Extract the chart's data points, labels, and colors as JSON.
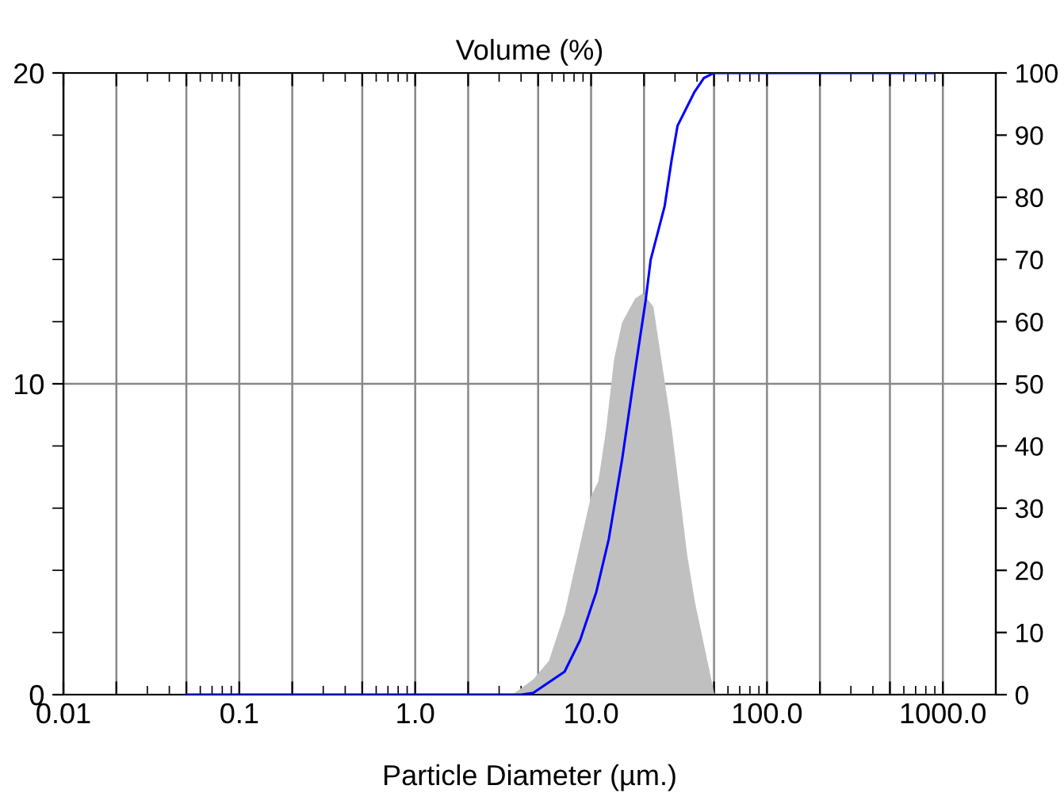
{
  "chart_data": {
    "type": "area",
    "title": "Volume (%)",
    "xlabel": "Particle Diameter (µm.)",
    "log": "x",
    "xlim": [
      0.01,
      2000
    ],
    "xticks": [
      {
        "value": 0.01,
        "label": "0.01"
      },
      {
        "value": 0.02,
        "label": null
      },
      {
        "value": 0.05,
        "label": null
      },
      {
        "value": 0.1,
        "label": "0.1"
      },
      {
        "value": 0.2,
        "label": null
      },
      {
        "value": 0.5,
        "label": null
      },
      {
        "value": 1,
        "label": "1.0"
      },
      {
        "value": 2,
        "label": null
      },
      {
        "value": 5,
        "label": null
      },
      {
        "value": 10,
        "label": "10.0"
      },
      {
        "value": 20,
        "label": null
      },
      {
        "value": 50,
        "label": null
      },
      {
        "value": 100,
        "label": "100.0"
      },
      {
        "value": 200,
        "label": null
      },
      {
        "value": 500,
        "label": null
      },
      {
        "value": 1000,
        "label": "1000.0"
      }
    ],
    "ylim": [
      0,
      20
    ],
    "yticks": [
      0,
      10,
      20
    ],
    "y2lim": [
      0,
      100
    ],
    "y2ticks": [
      0,
      10,
      20,
      30,
      40,
      50,
      60,
      70,
      80,
      90,
      100
    ],
    "grid": true,
    "legend": false,
    "series": [
      {
        "color": "#c0c0c0",
        "x": [
          3.57,
          4.69,
          5.76,
          7.07,
          8.39,
          9.96,
          11.0,
          12.2,
          13.5,
          15.0,
          17.8,
          19.7,
          22.6,
          25.9,
          28.7,
          31.8,
          35.2,
          39.0,
          43.2,
          47.9,
          50.3
        ],
        "values": [
          0,
          0.49,
          1.09,
          2.62,
          4.49,
          6.36,
          6.87,
          8.57,
          10.78,
          11.97,
          12.74,
          12.91,
          12.48,
          10.27,
          8.57,
          6.53,
          4.49,
          2.96,
          1.77,
          0.58,
          0
        ]
      },
      {
        "type": "line",
        "axis": "y2",
        "color": "#0000ff",
        "x": [
          0.05,
          4.0,
          4.69,
          7.07,
          8.67,
          10.7,
          12.6,
          15.0,
          17.8,
          20.4,
          21.8,
          26.2,
          28.7,
          31.0,
          38.8,
          43.8,
          50,
          880
        ],
        "values": [
          0,
          0,
          0.3,
          3.7,
          8.8,
          16.5,
          25,
          37.8,
          52.2,
          63.3,
          69.9,
          78.6,
          86,
          91.5,
          97,
          99.2,
          100,
          100
        ]
      }
    ]
  }
}
